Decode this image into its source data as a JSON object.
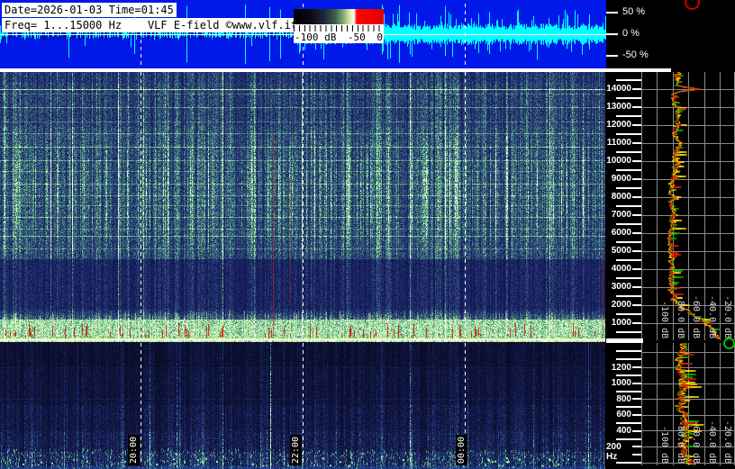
{
  "header": {
    "datetime": "Date=2026-01-03 Time=01:45",
    "freq_info": "Freq= 1...15000 Hz    VLF E-field ©www.vlf.it"
  },
  "colorbar": {
    "min": "-100 dB",
    "mid": "-50",
    "max": "0"
  },
  "amplitude_scale": {
    "labels": [
      "50 %",
      "0 %",
      "-50 %"
    ]
  },
  "main_freq_axis": {
    "labels": [
      "14000",
      "13000",
      "12000",
      "11000",
      "10000",
      "9000",
      "8000",
      "7000",
      "6000",
      "5000",
      "4000",
      "3000",
      "2000",
      "1000"
    ]
  },
  "low_freq_axis": {
    "labels": [
      "1200",
      "1000",
      "800",
      "600",
      "400",
      "200 Hz"
    ]
  },
  "spectrum_db_axis": {
    "labels": [
      "-100 dB",
      "-80.0 dB",
      "-60.0 dB",
      "-40.0 dB",
      "-20.0 dB"
    ]
  },
  "time_axis": {
    "labels": [
      "20:00",
      "22:00",
      "00:00"
    ]
  },
  "colors": {
    "waveform_bg": "#0018e8",
    "waveform_cyan": "#00ffff",
    "trace_red": "#e01800",
    "trace_yellow": "#ffd800",
    "trace_green": "#00b400",
    "grid_gray": "#8a8a8a",
    "marker_red": "#cc0000",
    "marker_green": "#00bb00"
  }
}
